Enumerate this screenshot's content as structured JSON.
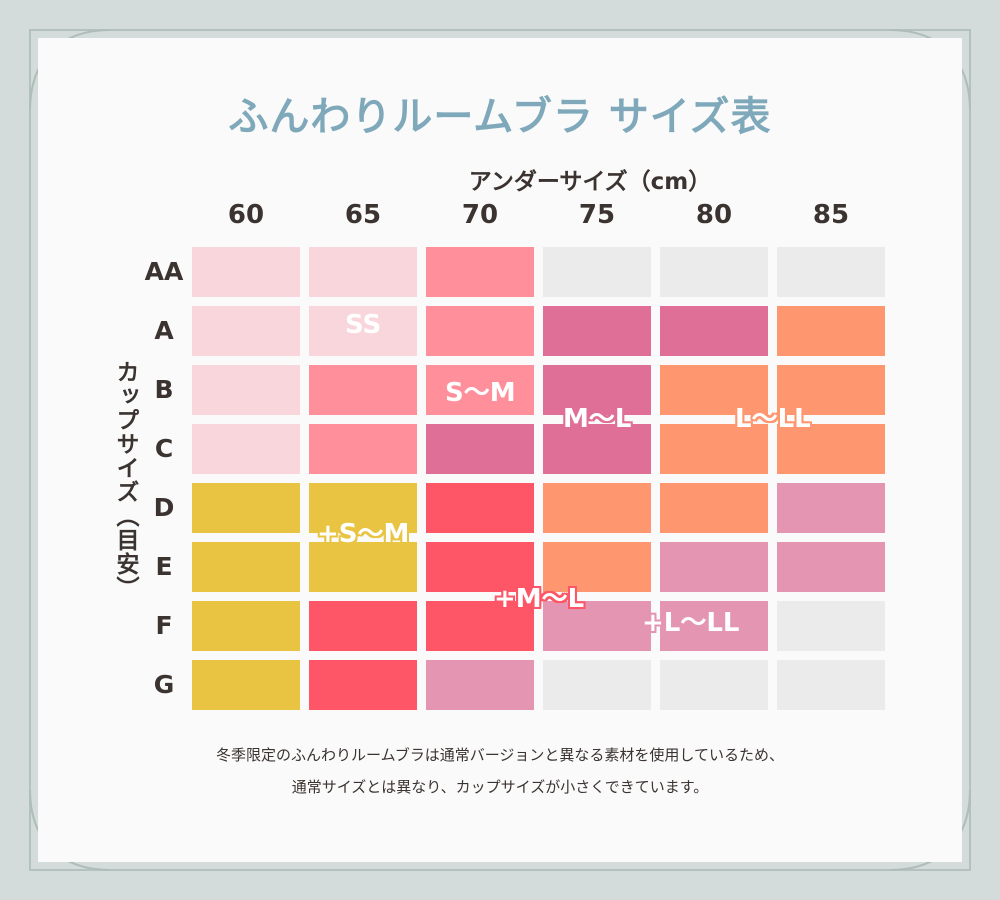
{
  "title": "ふんわりルームブラ サイズ表",
  "note_lines": [
    "冬季限定のふんわりルームブラは通常バージョンと異なる素材を使用しているため、",
    "通常サイズとは異なり、カップサイズが小さくできています。"
  ],
  "colors": {
    "background": "#d3dcda",
    "panel": "#fafafa",
    "frame": "#b3c2bf",
    "title": "#7fa9ba",
    "SS": "#f9d6dc",
    "S~M": "#fe8f9b",
    "M~L": "#df6f96",
    "L~LL": "#fe976f",
    "+S~M": "#e8c442",
    "+M~L": "#fe5666",
    "+L~LL": "#e395b2",
    "none": "#ebebeb"
  },
  "chart_data": {
    "type": "table",
    "xlabel": "アンダーサイズ（cm）",
    "ylabel": "カップサイズ（目安）",
    "x": [
      "60",
      "65",
      "70",
      "75",
      "80",
      "85"
    ],
    "y": [
      "AA",
      "A",
      "B",
      "C",
      "D",
      "E",
      "F",
      "G"
    ],
    "cells": [
      [
        "SS",
        "SS",
        "S~M",
        "none",
        "none",
        "none"
      ],
      [
        "SS",
        "SS",
        "S~M",
        "M~L",
        "M~L",
        "L~LL"
      ],
      [
        "SS",
        "S~M",
        "S~M",
        "M~L",
        "L~LL",
        "L~LL"
      ],
      [
        "SS",
        "S~M",
        "M~L",
        "M~L",
        "L~LL",
        "L~LL"
      ],
      [
        "+S~M",
        "+S~M",
        "+M~L",
        "L~LL",
        "L~LL",
        "+L~LL"
      ],
      [
        "+S~M",
        "+S~M",
        "+M~L",
        "L~LL",
        "+L~LL",
        "+L~LL"
      ],
      [
        "+S~M",
        "+M~L",
        "+M~L",
        "+L~LL",
        "+L~LL",
        "none"
      ],
      [
        "+S~M",
        "+M~L",
        "+L~LL",
        "none",
        "none",
        "none"
      ]
    ],
    "zones": [
      {
        "key": "SS",
        "label": "SS",
        "row": 0.9,
        "col": 1.0
      },
      {
        "key": "S~M",
        "label": "S～M",
        "row": 2.0,
        "col": 2.0
      },
      {
        "key": "M~L",
        "label": "M～L",
        "row": 2.45,
        "col": 3.0
      },
      {
        "key": "L~LL",
        "label": "L～LL",
        "row": 2.45,
        "col": 4.5
      },
      {
        "key": "+S~M",
        "label": "+S～M",
        "row": 4.4,
        "col": 1.0
      },
      {
        "key": "+M~L",
        "label": "+M～L",
        "row": 5.5,
        "col": 2.5
      },
      {
        "key": "+L~LL",
        "label": "+L～LL",
        "row": 5.9,
        "col": 3.8
      }
    ]
  }
}
